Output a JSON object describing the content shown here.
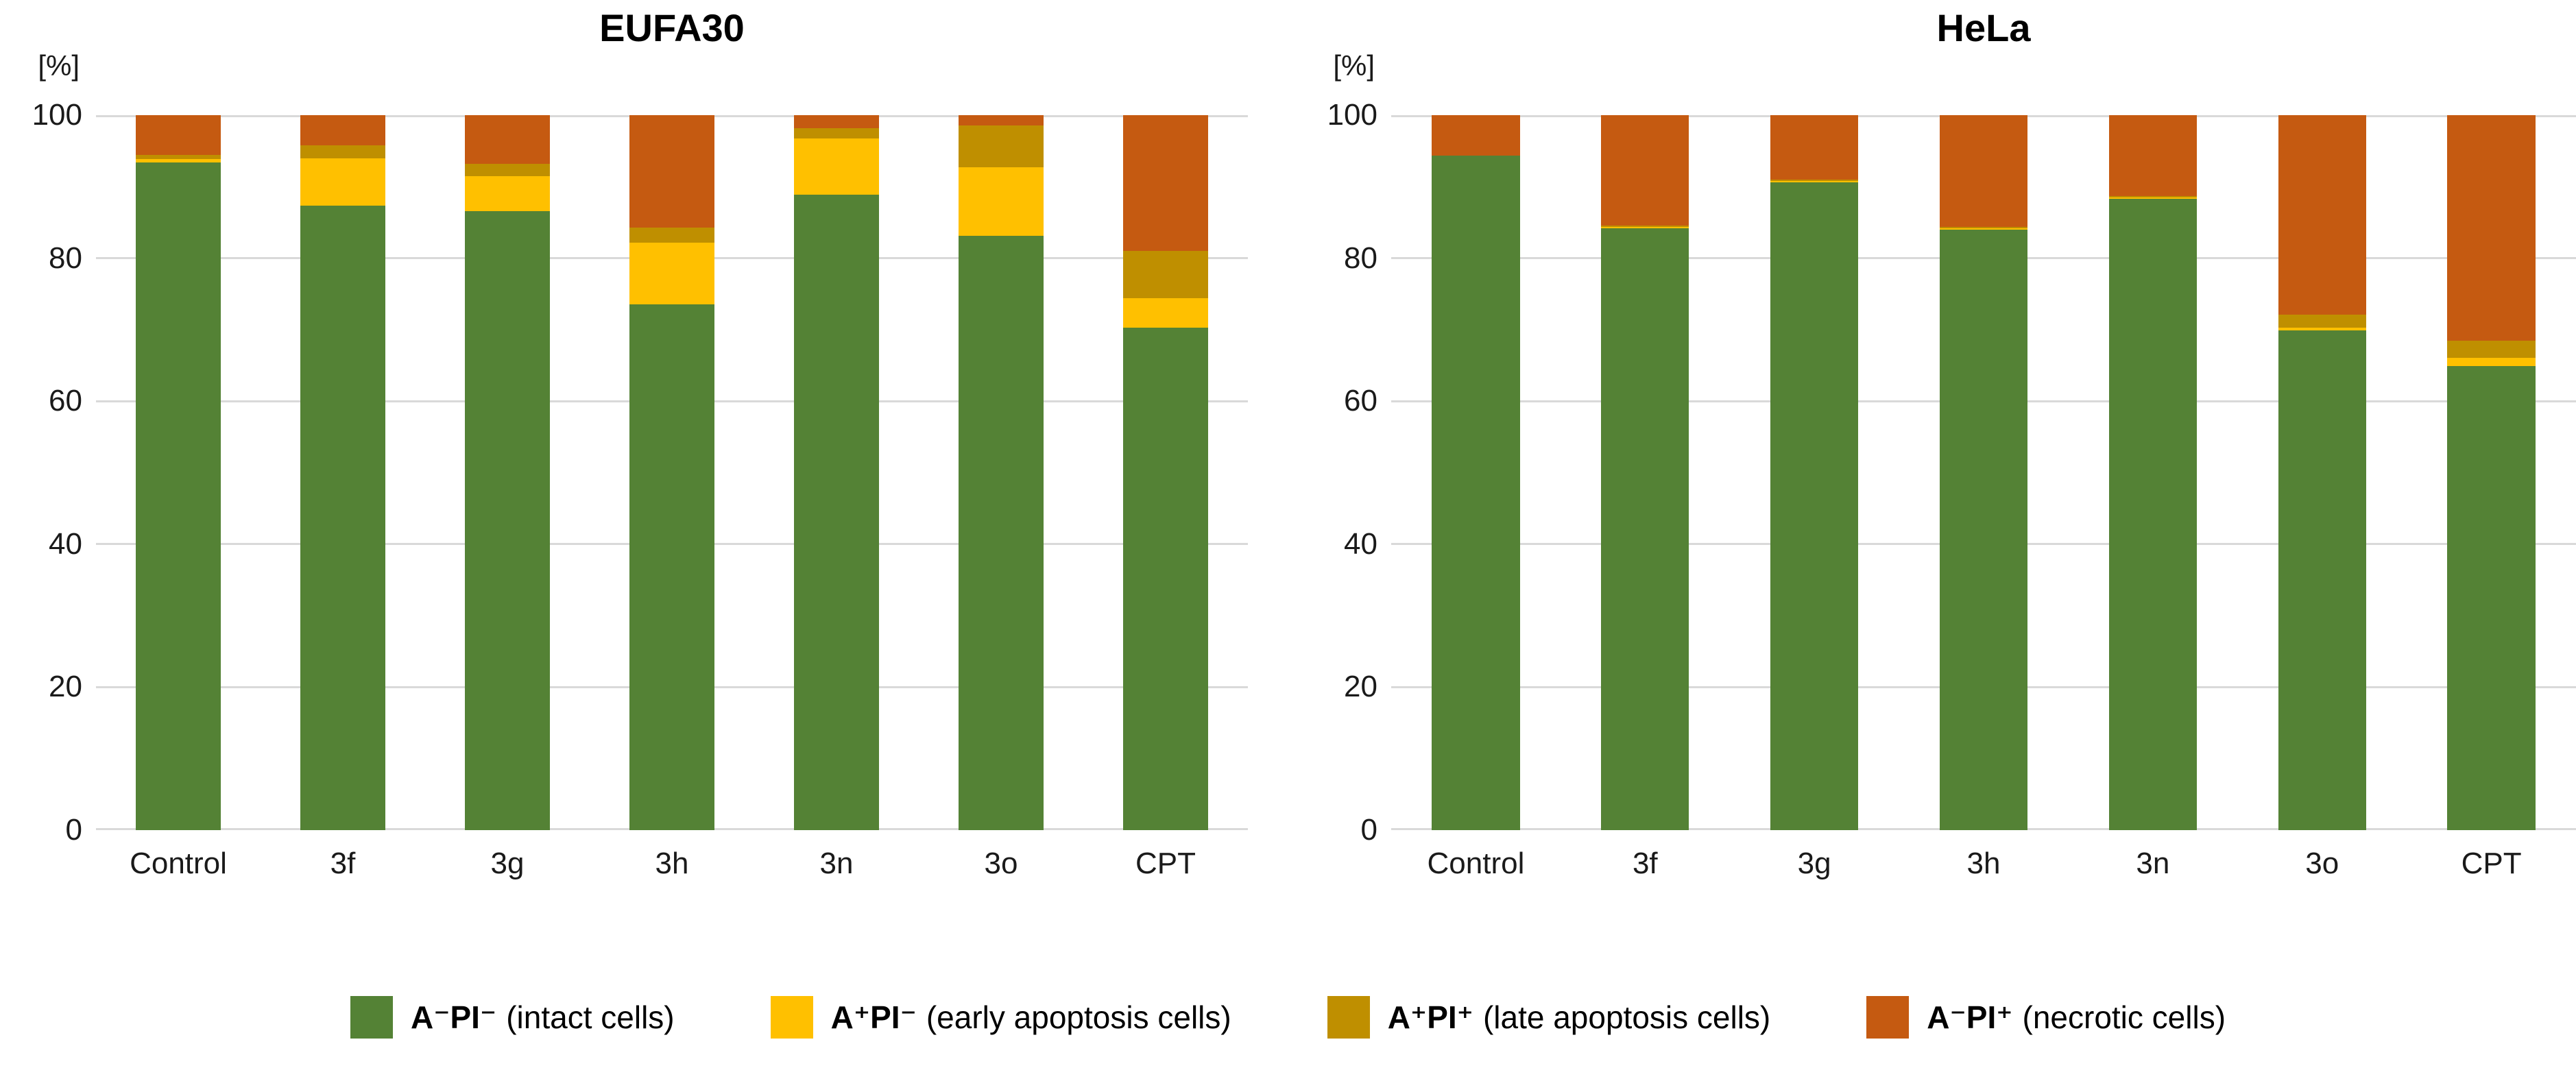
{
  "figure": {
    "background": "#ffffff"
  },
  "colors": {
    "grid": "#D9D9D9",
    "axis_text": "#1a1a1a",
    "title_text": "#000000"
  },
  "chart_data": [
    {
      "type": "bar",
      "stacked": true,
      "title": "EUFA30",
      "y_unit_label": "[%]",
      "ylim": [
        0,
        100
      ],
      "yticks": [
        0,
        20,
        40,
        60,
        80,
        100
      ],
      "grid": true,
      "legend_position": "bottom",
      "categories": [
        "Control",
        "3f",
        "3g",
        "3h",
        "3n",
        "3o",
        "CPT"
      ],
      "series": [
        {
          "name": "A⁻PI⁻ (intact cells)",
          "color": "#548235",
          "values": [
            93.4,
            87.3,
            86.6,
            73.5,
            88.9,
            83.1,
            70.3
          ]
        },
        {
          "name": "A⁺PI⁻ (early apoptosis cells)",
          "color": "#FFC000",
          "values": [
            0.5,
            6.7,
            4.9,
            8.7,
            7.8,
            9.6,
            4.1
          ]
        },
        {
          "name": "A⁺PI⁺ (late apoptosis cells)",
          "color": "#BF8F00",
          "values": [
            0.5,
            1.8,
            1.7,
            2.1,
            1.5,
            5.9,
            6.6
          ]
        },
        {
          "name": "A⁻PI⁺ (necrotic cells)",
          "color": "#C55A11",
          "values": [
            5.6,
            4.2,
            6.8,
            15.7,
            1.8,
            1.4,
            19.0
          ]
        }
      ]
    },
    {
      "type": "bar",
      "stacked": true,
      "title": "HeLa",
      "y_unit_label": "[%]",
      "ylim": [
        0,
        100
      ],
      "yticks": [
        0,
        20,
        40,
        60,
        80,
        100
      ],
      "grid": true,
      "legend_position": "bottom",
      "categories": [
        "Control",
        "3f",
        "3g",
        "3h",
        "3n",
        "3o",
        "CPT"
      ],
      "series": [
        {
          "name": "A⁻PI⁻ (intact cells)",
          "color": "#548235",
          "values": [
            94.3,
            84.2,
            90.6,
            84.0,
            88.3,
            69.9,
            64.9
          ]
        },
        {
          "name": "A⁺PI⁻ (early apoptosis cells)",
          "color": "#FFC000",
          "values": [
            0.0,
            0.2,
            0.2,
            0.2,
            0.2,
            0.4,
            1.2
          ]
        },
        {
          "name": "A⁺PI⁺ (late apoptosis cells)",
          "color": "#BF8F00",
          "values": [
            0.0,
            0.2,
            0.2,
            0.2,
            0.2,
            1.8,
            2.4
          ]
        },
        {
          "name": "A⁻PI⁺ (necrotic cells)",
          "color": "#C55A11",
          "values": [
            5.7,
            15.4,
            9.0,
            15.6,
            11.3,
            27.9,
            31.5
          ]
        }
      ]
    }
  ],
  "legend": {
    "items": [
      {
        "marker": "A⁻PI⁻",
        "desc": "(intact cells)",
        "color": "#548235"
      },
      {
        "marker": "A⁺PI⁻",
        "desc": "(early apoptosis cells)",
        "color": "#FFC000"
      },
      {
        "marker": "A⁺PI⁺",
        "desc": "(late apoptosis cells)",
        "color": "#BF8F00"
      },
      {
        "marker": "A⁻PI⁺",
        "desc": "(necrotic cells)",
        "color": "#C55A11"
      }
    ]
  }
}
